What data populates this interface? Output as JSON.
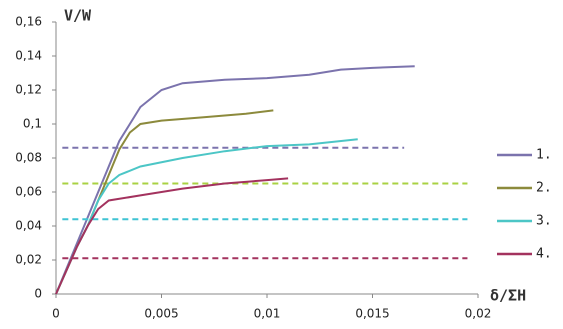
{
  "chart_data": {
    "type": "line",
    "y_label": "V/W",
    "x_label": "δ/ΣH",
    "xlim": [
      0,
      0.02
    ],
    "ylim": [
      0,
      0.16
    ],
    "xticks": [
      0,
      {
        "value": 0.005,
        "label": "0,005"
      },
      {
        "value": 0.01,
        "label": "0,01"
      },
      {
        "value": 0.015,
        "label": "0,015"
      },
      {
        "value": 0.02,
        "label": "0,02"
      }
    ],
    "yticks": [
      0,
      {
        "value": 0.02,
        "label": "0,02"
      },
      {
        "value": 0.04,
        "label": "0,04"
      },
      {
        "value": 0.06,
        "label": "0,06"
      },
      {
        "value": 0.08,
        "label": "0,08"
      },
      {
        "value": 0.1,
        "label": "0,1"
      },
      {
        "value": 0.12,
        "label": "0,12"
      },
      {
        "value": 0.14,
        "label": "0,14"
      },
      {
        "value": 0.16,
        "label": "0,16"
      }
    ],
    "grid": false,
    "legend": "right",
    "series": [
      {
        "name": "1.",
        "color": "#7b73ad",
        "x": [
          0,
          0.001,
          0.002,
          0.003,
          0.0035,
          0.004,
          0.005,
          0.006,
          0.008,
          0.01,
          0.012,
          0.0135,
          0.015,
          0.017
        ],
        "values": [
          0,
          0.03,
          0.06,
          0.09,
          0.1,
          0.11,
          0.12,
          0.124,
          0.126,
          0.127,
          0.129,
          0.132,
          0.133,
          0.134
        ],
        "reference": {
          "value": 0.086,
          "x": [
            0.0003,
            0.0165
          ],
          "color": "#7b73ad"
        }
      },
      {
        "name": "2.",
        "color": "#8c8a3c",
        "x": [
          0,
          0.001,
          0.0015,
          0.002,
          0.0025,
          0.003,
          0.0035,
          0.004,
          0.005,
          0.007,
          0.009,
          0.0103
        ],
        "values": [
          0,
          0.028,
          0.04,
          0.055,
          0.07,
          0.085,
          0.095,
          0.1,
          0.102,
          0.104,
          0.106,
          0.108
        ],
        "reference": {
          "value": 0.065,
          "x": [
            0.0003,
            0.0195
          ],
          "color": "#a9d243"
        }
      },
      {
        "name": "3.",
        "color": "#4cc6c6",
        "x": [
          0,
          0.001,
          0.0015,
          0.002,
          0.0025,
          0.003,
          0.004,
          0.006,
          0.008,
          0.01,
          0.012,
          0.0143
        ],
        "values": [
          0,
          0.028,
          0.04,
          0.055,
          0.065,
          0.07,
          0.075,
          0.08,
          0.084,
          0.087,
          0.088,
          0.091
        ],
        "reference": {
          "value": 0.044,
          "x": [
            0.0003,
            0.0195
          ],
          "color": "#3fc3d3"
        }
      },
      {
        "name": "4.",
        "color": "#a3325e",
        "x": [
          0,
          0.001,
          0.0015,
          0.002,
          0.0025,
          0.004,
          0.006,
          0.008,
          0.01,
          0.011
        ],
        "values": [
          0,
          0.028,
          0.04,
          0.05,
          0.055,
          0.058,
          0.062,
          0.065,
          0.067,
          0.068
        ],
        "reference": {
          "value": 0.021,
          "x": [
            0.0003,
            0.0195
          ],
          "color": "#a3325e"
        }
      }
    ]
  }
}
